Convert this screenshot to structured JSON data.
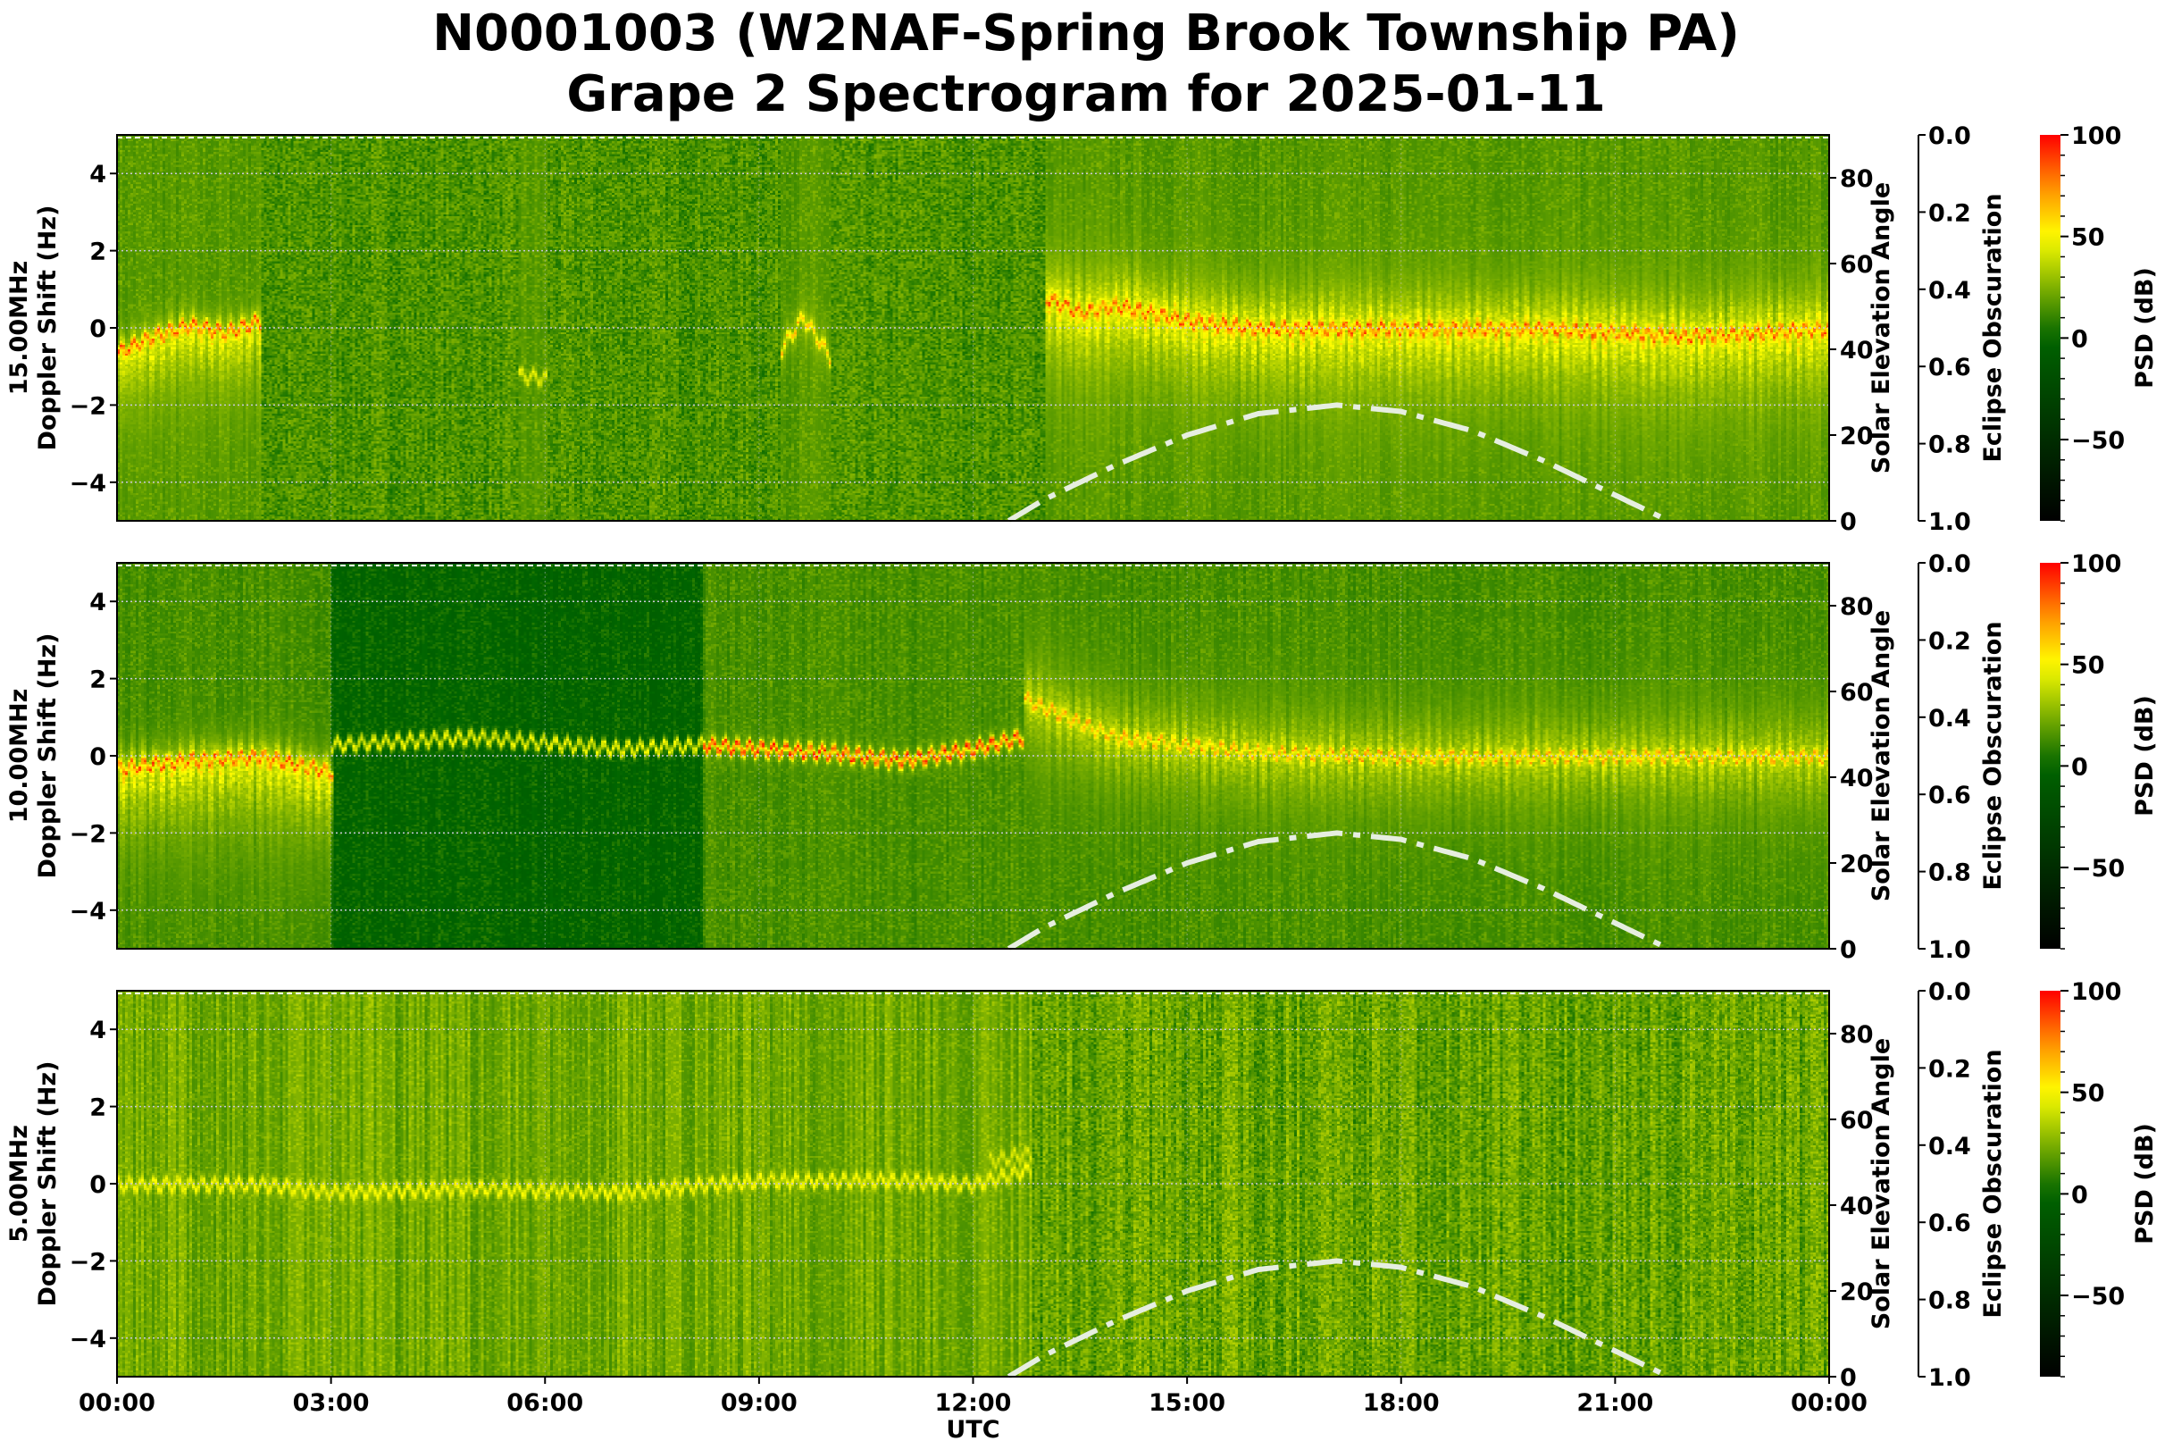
{
  "title_line1": "N0001003 (W2NAF-Spring Brook Township PA)",
  "title_line2": "Grape 2 Spectrogram for 2025-01-11",
  "colors": {
    "cmap": [
      "#000000",
      "#006400",
      "#ffff00",
      "#ff0000"
    ],
    "solar_curve": "#e6eee0",
    "grid": "#c8c8d8"
  },
  "chart_data": [
    {
      "type": "heatmap",
      "band": "15.00MHz",
      "ylabel_line1": "15.00MHz",
      "ylabel_line2": "Doppler Shift (Hz)",
      "ylabel_right": "Solar Elevation Angle",
      "ylabel_eclipse": "Eclipse Obscuration",
      "colorbar_label": "PSD (dB)",
      "ylim": [
        -5,
        5
      ],
      "yticks": [
        "4",
        "2",
        "0",
        "−2",
        "−4"
      ],
      "ytick_values": [
        4,
        2,
        0,
        -2,
        -4
      ],
      "solar_ylim": [
        0,
        90
      ],
      "solar_ticks": [
        "0",
        "20",
        "40",
        "60",
        "80"
      ],
      "solar_tick_values": [
        0,
        20,
        40,
        60,
        80
      ],
      "eclipse_ticks": [
        "0.0",
        "0.2",
        "0.4",
        "0.6",
        "0.8",
        "1.0"
      ],
      "colorbar_range": [
        -90,
        100
      ],
      "colorbar_ticks": [
        "100",
        "50",
        "0",
        "−50"
      ],
      "colorbar_tick_values": [
        100,
        50,
        0,
        -50
      ],
      "background_db": 15,
      "traces": [
        {
          "hours": [
            0,
            0.5,
            1,
            1.5,
            2
          ],
          "doppler": [
            -0.6,
            -0.2,
            0.1,
            -0.1,
            0.2
          ],
          "db": 80,
          "spread_up": 0.6,
          "spread_down": 2.5
        },
        {
          "hours": [
            5.6,
            6.0
          ],
          "doppler": [
            -1.2,
            -1.3
          ],
          "db": 45,
          "spread_up": 0.2,
          "spread_down": 0.2
        },
        {
          "hours": [
            9.3,
            9.6,
            10.0
          ],
          "doppler": [
            -0.5,
            0.3,
            -0.8
          ],
          "db": 60,
          "spread_up": 0.8,
          "spread_down": 0.8
        },
        {
          "hours": [
            13,
            13.5,
            14,
            15,
            16,
            18,
            20,
            22,
            24
          ],
          "doppler": [
            0.8,
            0.4,
            0.6,
            0.2,
            0.0,
            0.0,
            0.0,
            -0.2,
            0.0
          ],
          "db": 80,
          "spread_up": 1.8,
          "spread_down": 3.0
        }
      ]
    },
    {
      "type": "heatmap",
      "band": "10.00MHz",
      "ylabel_line1": "10.00MHz",
      "ylabel_line2": "Doppler Shift (Hz)",
      "ylabel_right": "Solar Elevation Angle",
      "ylabel_eclipse": "Eclipse Obscuration",
      "colorbar_label": "PSD (dB)",
      "ylim": [
        -5,
        5
      ],
      "yticks": [
        "4",
        "2",
        "0",
        "−2",
        "−4"
      ],
      "ytick_values": [
        4,
        2,
        0,
        -2,
        -4
      ],
      "solar_ylim": [
        0,
        90
      ],
      "solar_ticks": [
        "0",
        "20",
        "40",
        "60",
        "80"
      ],
      "solar_tick_values": [
        0,
        20,
        40,
        60,
        80
      ],
      "eclipse_ticks": [
        "0.0",
        "0.2",
        "0.4",
        "0.6",
        "0.8",
        "1.0"
      ],
      "colorbar_range": [
        -90,
        100
      ],
      "colorbar_ticks": [
        "100",
        "50",
        "0",
        "−50"
      ],
      "colorbar_tick_values": [
        100,
        50,
        0,
        -50
      ],
      "background_db": 12,
      "quiet_interval_hours": [
        3,
        8.2
      ],
      "traces": [
        {
          "hours": [
            0,
            1,
            2,
            3
          ],
          "doppler": [
            -0.3,
            -0.1,
            0.0,
            -0.4
          ],
          "db": 80,
          "spread_up": 0.8,
          "spread_down": 3.0
        },
        {
          "hours": [
            3,
            5,
            7,
            8.2
          ],
          "doppler": [
            0.3,
            0.5,
            0.2,
            0.3
          ],
          "db": 45,
          "spread_up": 0.2,
          "spread_down": 0.2
        },
        {
          "hours": [
            8.2,
            9,
            10,
            11,
            12,
            12.7
          ],
          "doppler": [
            0.3,
            0.2,
            0.1,
            -0.1,
            0.2,
            0.5
          ],
          "db": 85,
          "spread_up": 0.3,
          "spread_down": 0.3
        },
        {
          "hours": [
            12.7,
            13.3,
            14,
            16,
            18,
            20,
            22,
            24
          ],
          "doppler": [
            1.5,
            1.0,
            0.5,
            0.1,
            0.0,
            0.0,
            0.0,
            0.0
          ],
          "db": 65,
          "spread_up": 2.0,
          "spread_down": 2.5
        }
      ]
    },
    {
      "type": "heatmap",
      "band": "5.00MHz",
      "ylabel_line1": "5.00MHz",
      "ylabel_line2": "Doppler Shift (Hz)",
      "ylabel_right": "Solar Elevation Angle",
      "ylabel_eclipse": "Eclipse Obscuration",
      "colorbar_label": "PSD (dB)",
      "ylim": [
        -5,
        5
      ],
      "yticks": [
        "4",
        "2",
        "0",
        "−2",
        "−4"
      ],
      "ytick_values": [
        4,
        2,
        0,
        -2,
        -4
      ],
      "solar_ylim": [
        0,
        90
      ],
      "solar_ticks": [
        "0",
        "20",
        "40",
        "60",
        "80"
      ],
      "solar_tick_values": [
        0,
        20,
        40,
        60,
        80
      ],
      "eclipse_ticks": [
        "0.0",
        "0.2",
        "0.4",
        "0.6",
        "0.8",
        "1.0"
      ],
      "colorbar_range": [
        -90,
        100
      ],
      "colorbar_ticks": [
        "100",
        "50",
        "0",
        "−50"
      ],
      "colorbar_tick_values": [
        100,
        50,
        0,
        -50
      ],
      "background_db": 20,
      "traces": [
        {
          "hours": [
            0,
            2,
            3,
            5,
            7,
            9,
            11,
            12,
            12.8
          ],
          "doppler": [
            0.0,
            0.0,
            -0.2,
            -0.1,
            -0.2,
            0.1,
            0.1,
            0.0,
            0.4
          ],
          "db": 48,
          "spread_up": 0.2,
          "spread_down": 0.3
        },
        {
          "hours": [
            12.2,
            12.8
          ],
          "doppler": [
            0.6,
            0.8
          ],
          "db": 42,
          "spread_up": 0.6,
          "spread_down": 0.4
        }
      ]
    }
  ],
  "solar_elevation": {
    "hours": [
      12.5,
      13,
      14,
      15,
      16,
      17.1,
      18,
      19,
      20,
      21,
      21.75
    ],
    "degrees": [
      0,
      5,
      13,
      20,
      25,
      27,
      25.5,
      21,
      14,
      6,
      0
    ]
  },
  "xaxis": {
    "label": "UTC",
    "ticks": [
      "00:00",
      "03:00",
      "06:00",
      "09:00",
      "12:00",
      "15:00",
      "18:00",
      "21:00",
      "00:00"
    ],
    "tick_hours": [
      0,
      3,
      6,
      9,
      12,
      15,
      18,
      21,
      24
    ]
  }
}
